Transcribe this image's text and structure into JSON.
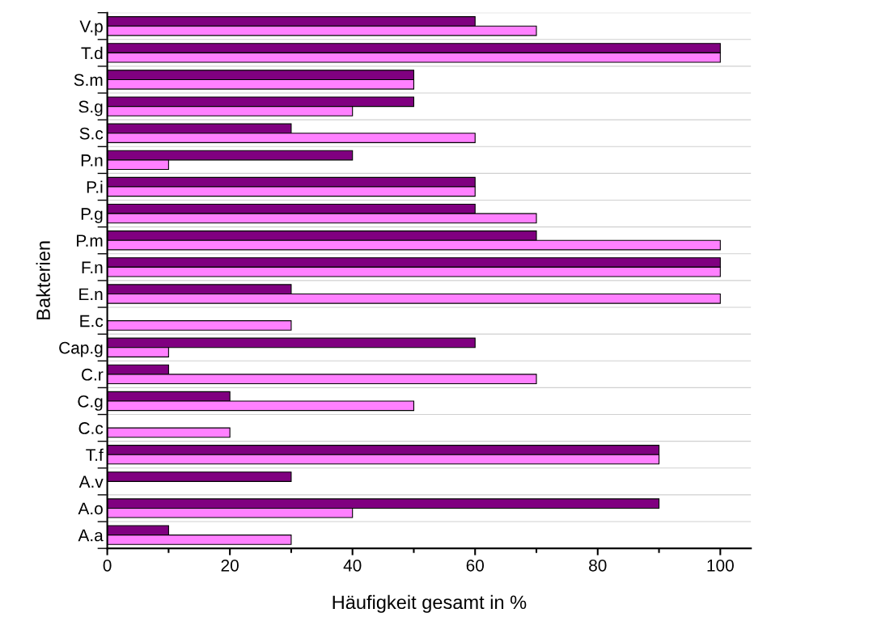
{
  "chart_data": {
    "type": "bar",
    "orientation": "horizontal",
    "xlabel": "Häufigkeit gesamt in %",
    "ylabel": "Bakterien",
    "categories": [
      "V.p",
      "T.d",
      "S.m",
      "S.g",
      "S.c",
      "P.n",
      "P.i",
      "P.g",
      "P.m",
      "F.n",
      "E.n",
      "E.c",
      "Cap.g",
      "C.r",
      "C.g",
      "C.c",
      "T.f",
      "A.v",
      "A.o",
      "A.a"
    ],
    "series": [
      {
        "color": "#800080",
        "values": [
          60,
          100,
          50,
          50,
          30,
          40,
          60,
          60,
          70,
          100,
          30,
          null,
          60,
          10,
          20,
          null,
          90,
          30,
          90,
          10
        ]
      },
      {
        "color": "#ff80ff",
        "values": [
          70,
          100,
          50,
          40,
          60,
          10,
          60,
          70,
          100,
          100,
          100,
          30,
          10,
          70,
          50,
          20,
          90,
          null,
          40,
          30
        ]
      }
    ],
    "xlim": [
      0,
      105
    ],
    "xticks": [
      0,
      20,
      40,
      60,
      80,
      100
    ],
    "grid": "y"
  }
}
